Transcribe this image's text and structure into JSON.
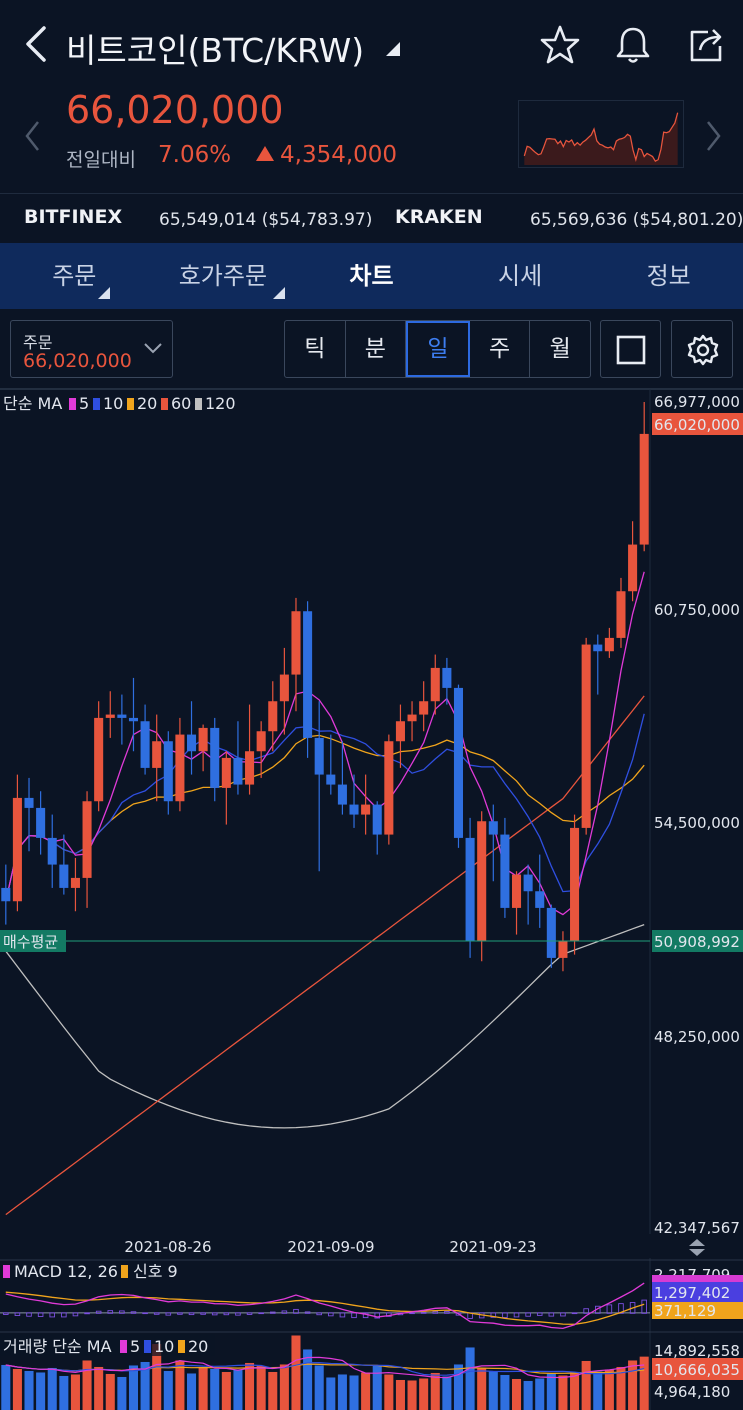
{
  "header": {
    "title": "비트코인(BTC/KRW)",
    "icons": [
      "back-icon",
      "star-icon",
      "bell-icon",
      "share-icon"
    ]
  },
  "price": {
    "current": "66,020,000",
    "change_label": "전일대비",
    "change_pct": "7.06%",
    "change_amount": "4,354,000",
    "color_up": "#e8553d"
  },
  "exchanges": [
    {
      "name": "BITFINEX",
      "value": "65,549,014 ($54,783.97)"
    },
    {
      "name": "KRAKEN",
      "value": "65,569,636 ($54,801.20)"
    }
  ],
  "tabs": [
    {
      "label": "주문",
      "active": false,
      "corner": true
    },
    {
      "label": "호가주문",
      "active": false,
      "corner": true
    },
    {
      "label": "차트",
      "active": true,
      "corner": false
    },
    {
      "label": "시세",
      "active": false,
      "corner": false
    },
    {
      "label": "정보",
      "active": false,
      "corner": false
    }
  ],
  "toolbar": {
    "order_label": "주문",
    "order_price": "66,020,000",
    "periods": [
      "틱",
      "분",
      "일",
      "주",
      "월"
    ],
    "active_period": "일"
  },
  "chart_data": {
    "type": "candlestick",
    "indicator_label": "단순 MA",
    "ma_legend": [
      {
        "period": "5",
        "color": "#e03ad8"
      },
      {
        "period": "10",
        "color": "#2f4fe0"
      },
      {
        "period": "20",
        "color": "#f0a41c"
      },
      {
        "period": "60",
        "color": "#e8553d"
      },
      {
        "period": "120",
        "color": "#bfbfbf"
      }
    ],
    "y_ticks": [
      "66,977,000",
      "60,750,000",
      "54,500,000",
      "48,250,000",
      "42,347,567"
    ],
    "y_range": [
      42347567,
      66977000
    ],
    "current_price_label": "66,020,000",
    "avg_buy_label": "매수평균",
    "avg_buy_value": "50,908,992",
    "x_ticks": [
      "2021-08-26",
      "2021-09-09",
      "2021-09-23"
    ],
    "candles": [
      {
        "o": 52400000,
        "h": 53100000,
        "l": 51300000,
        "c": 52000000
      },
      {
        "o": 52000000,
        "h": 55800000,
        "l": 51700000,
        "c": 55100000
      },
      {
        "o": 55100000,
        "h": 55700000,
        "l": 53500000,
        "c": 54800000
      },
      {
        "o": 54800000,
        "h": 55300000,
        "l": 53400000,
        "c": 53900000
      },
      {
        "o": 53900000,
        "h": 54600000,
        "l": 52400000,
        "c": 53100000
      },
      {
        "o": 53100000,
        "h": 54000000,
        "l": 52200000,
        "c": 52400000
      },
      {
        "o": 52400000,
        "h": 53300000,
        "l": 51700000,
        "c": 52700000
      },
      {
        "o": 52700000,
        "h": 55300000,
        "l": 51800000,
        "c": 55000000
      },
      {
        "o": 55000000,
        "h": 58000000,
        "l": 54700000,
        "c": 57500000
      },
      {
        "o": 57500000,
        "h": 58300000,
        "l": 56900000,
        "c": 57600000
      },
      {
        "o": 57600000,
        "h": 58200000,
        "l": 56700000,
        "c": 57500000
      },
      {
        "o": 57500000,
        "h": 58700000,
        "l": 56500000,
        "c": 57400000
      },
      {
        "o": 57400000,
        "h": 57900000,
        "l": 55800000,
        "c": 56000000
      },
      {
        "o": 56000000,
        "h": 57600000,
        "l": 55000000,
        "c": 56800000
      },
      {
        "o": 56800000,
        "h": 57100000,
        "l": 54600000,
        "c": 55000000
      },
      {
        "o": 55000000,
        "h": 57500000,
        "l": 54700000,
        "c": 57000000
      },
      {
        "o": 57000000,
        "h": 58000000,
        "l": 55800000,
        "c": 56500000
      },
      {
        "o": 56500000,
        "h": 57300000,
        "l": 55900000,
        "c": 57200000
      },
      {
        "o": 57200000,
        "h": 57500000,
        "l": 55000000,
        "c": 55400000
      },
      {
        "o": 55400000,
        "h": 56500000,
        "l": 54300000,
        "c": 56300000
      },
      {
        "o": 56300000,
        "h": 57400000,
        "l": 55200000,
        "c": 55500000
      },
      {
        "o": 55500000,
        "h": 57900000,
        "l": 55200000,
        "c": 56500000
      },
      {
        "o": 56500000,
        "h": 57400000,
        "l": 55700000,
        "c": 57100000
      },
      {
        "o": 57100000,
        "h": 58600000,
        "l": 56500000,
        "c": 58000000
      },
      {
        "o": 58000000,
        "h": 59600000,
        "l": 57000000,
        "c": 58800000
      },
      {
        "o": 58800000,
        "h": 61100000,
        "l": 57700000,
        "c": 60700000
      },
      {
        "o": 60700000,
        "h": 61000000,
        "l": 56300000,
        "c": 56900000
      },
      {
        "o": 56900000,
        "h": 58000000,
        "l": 52900000,
        "c": 55800000
      },
      {
        "o": 55800000,
        "h": 57000000,
        "l": 55200000,
        "c": 55500000
      },
      {
        "o": 55500000,
        "h": 56800000,
        "l": 54600000,
        "c": 54900000
      },
      {
        "o": 54900000,
        "h": 55800000,
        "l": 54200000,
        "c": 54600000
      },
      {
        "o": 54600000,
        "h": 55800000,
        "l": 54000000,
        "c": 54900000
      },
      {
        "o": 54900000,
        "h": 55000000,
        "l": 53400000,
        "c": 54000000
      },
      {
        "o": 54000000,
        "h": 57000000,
        "l": 53700000,
        "c": 56800000
      },
      {
        "o": 56800000,
        "h": 57900000,
        "l": 56000000,
        "c": 57400000
      },
      {
        "o": 57400000,
        "h": 58000000,
        "l": 56800000,
        "c": 57600000
      },
      {
        "o": 57600000,
        "h": 58600000,
        "l": 57100000,
        "c": 58000000
      },
      {
        "o": 58000000,
        "h": 59400000,
        "l": 57600000,
        "c": 59000000
      },
      {
        "o": 59000000,
        "h": 59300000,
        "l": 57900000,
        "c": 58400000
      },
      {
        "o": 58400000,
        "h": 58500000,
        "l": 53600000,
        "c": 53900000
      },
      {
        "o": 53900000,
        "h": 54500000,
        "l": 50300000,
        "c": 50800000
      },
      {
        "o": 50800000,
        "h": 54700000,
        "l": 50200000,
        "c": 54400000
      },
      {
        "o": 54400000,
        "h": 54900000,
        "l": 52600000,
        "c": 54000000
      },
      {
        "o": 54000000,
        "h": 54500000,
        "l": 51500000,
        "c": 51800000
      },
      {
        "o": 51800000,
        "h": 52900000,
        "l": 51000000,
        "c": 52800000
      },
      {
        "o": 52800000,
        "h": 53100000,
        "l": 51300000,
        "c": 52300000
      },
      {
        "o": 52300000,
        "h": 53400000,
        "l": 51200000,
        "c": 51800000
      },
      {
        "o": 51800000,
        "h": 51900000,
        "l": 50000000,
        "c": 50300000
      },
      {
        "o": 50300000,
        "h": 51100000,
        "l": 49900000,
        "c": 50800000
      },
      {
        "o": 50800000,
        "h": 54600000,
        "l": 50400000,
        "c": 54200000
      },
      {
        "o": 54200000,
        "h": 59900000,
        "l": 54000000,
        "c": 59700000
      },
      {
        "o": 59700000,
        "h": 60000000,
        "l": 58200000,
        "c": 59500000
      },
      {
        "o": 59500000,
        "h": 60200000,
        "l": 59300000,
        "c": 59900000
      },
      {
        "o": 59900000,
        "h": 61700000,
        "l": 59600000,
        "c": 61300000
      },
      {
        "o": 61300000,
        "h": 63400000,
        "l": 61000000,
        "c": 62700000
      },
      {
        "o": 62700000,
        "h": 66977000,
        "l": 62500000,
        "c": 66020000
      }
    ],
    "macd": {
      "label": "MACD 12, 26",
      "signal_label": "신호 9",
      "axis_labels": [
        "2,217,709",
        "1,297,402",
        "371,129"
      ],
      "macd_values": [
        820000,
        700000,
        600000,
        520000,
        420000,
        360000,
        380000,
        520000,
        700000,
        780000,
        800000,
        760000,
        650000,
        580000,
        480000,
        520000,
        470000,
        470000,
        400000,
        390000,
        330000,
        360000,
        410000,
        500000,
        610000,
        780000,
        620000,
        430000,
        300000,
        150000,
        20000,
        -60000,
        -180000,
        -120000,
        -30000,
        40000,
        110000,
        200000,
        220000,
        -40000,
        -380000,
        -420000,
        -450000,
        -540000,
        -560000,
        -560000,
        -540000,
        -640000,
        -680000,
        -520000,
        -120000,
        180000,
        430000,
        690000,
        960000,
        1297402
      ],
      "signal_values": [
        900000,
        860000,
        810000,
        750000,
        680000,
        620000,
        560000,
        550000,
        580000,
        620000,
        660000,
        680000,
        670000,
        650000,
        610000,
        590000,
        560000,
        540000,
        510000,
        490000,
        460000,
        440000,
        430000,
        440000,
        470000,
        530000,
        550000,
        530000,
        480000,
        410000,
        330000,
        250000,
        160000,
        100000,
        70000,
        60000,
        70000,
        100000,
        120000,
        90000,
        -10000,
        -90000,
        -160000,
        -240000,
        -300000,
        -350000,
        -390000,
        -440000,
        -490000,
        -500000,
        -420000,
        -300000,
        -150000,
        20000,
        210000,
        371129
      ]
    },
    "volume": {
      "label": "거래량 단순 MA",
      "ma_legend": [
        {
          "period": "5",
          "color": "#e03ad8"
        },
        {
          "period": "10",
          "color": "#2f4fe0"
        },
        {
          "period": "20",
          "color": "#f0a41c"
        }
      ],
      "axis_labels": [
        "14,892,558",
        "10,666,035",
        "4,964,180"
      ],
      "values": [
        9000000,
        8200000,
        7800000,
        7500000,
        8400000,
        6800000,
        7100000,
        9900000,
        8600000,
        7200000,
        6600000,
        8900000,
        9600000,
        13200000,
        7800000,
        9900000,
        7300000,
        8600000,
        8200000,
        7600000,
        8100000,
        9400000,
        8800000,
        7600000,
        9100000,
        14892558,
        12100000,
        8900000,
        6500000,
        7100000,
        6900000,
        7500000,
        8800000,
        7100000,
        6000000,
        5900000,
        6300000,
        7400000,
        6700000,
        9100000,
        12500000,
        8400000,
        7700000,
        7000000,
        6200000,
        5800000,
        6300000,
        7300000,
        6900000,
        7600000,
        9800000,
        7700000,
        8100000,
        8600000,
        9900000,
        10666035
      ]
    }
  }
}
